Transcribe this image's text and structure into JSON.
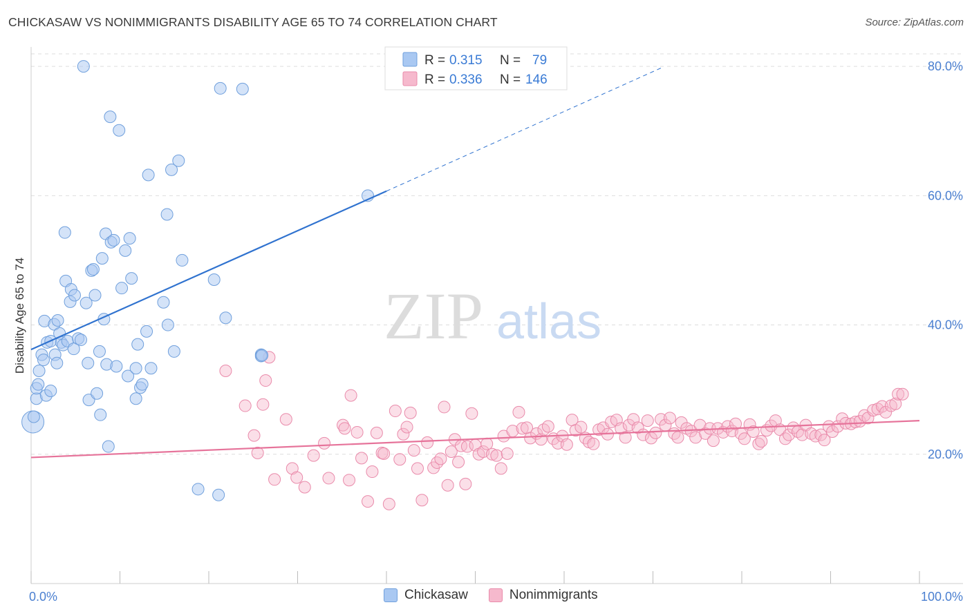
{
  "title": "CHICKASAW VS NONIMMIGRANTS DISABILITY AGE 65 TO 74 CORRELATION CHART",
  "source": "Source: ZipAtlas.com",
  "watermark": {
    "zip": "ZIP",
    "atlas": "atlas"
  },
  "legend_top": [
    {
      "r_label": "R =",
      "r_value": "0.315",
      "n_label": "N =",
      "n_value": "79"
    },
    {
      "r_label": "R =",
      "r_value": "0.336",
      "n_label": "N =",
      "n_value": "146"
    }
  ],
  "legend_bottom": [
    {
      "label": "Chickasaw"
    },
    {
      "label": "Nonimmigrants"
    }
  ],
  "colors": {
    "blue_fill": "#a9c8f2",
    "blue_stroke": "#6f9fdc",
    "blue_line": "#2f72cf",
    "pink_fill": "#f6b9cd",
    "pink_stroke": "#e98aaa",
    "pink_line": "#e6739a",
    "tick_text": "#4a7fd0",
    "grid": "#dddddd"
  },
  "chart_data": {
    "type": "scatter",
    "title": "CHICKASAW VS NONIMMIGRANTS DISABILITY AGE 65 TO 74 CORRELATION CHART",
    "xlabel": "",
    "ylabel": "Disability Age 65 to 74",
    "xlim": [
      0,
      100
    ],
    "ylim": [
      0,
      83
    ],
    "x_tick_labels": [
      "0.0%",
      "100.0%"
    ],
    "y_ticks": [
      20,
      40,
      60,
      80
    ],
    "y_tick_labels": [
      "20.0%",
      "40.0%",
      "60.0%",
      "80.0%"
    ],
    "grid": true,
    "series": [
      {
        "name": "Chickasaw",
        "r": 0.315,
        "n": 79,
        "trend": {
          "x0": 0,
          "y0": 36.2,
          "x1": 40,
          "y1": 60.7,
          "dash_to_x": 71,
          "dash_to_y": 79.8
        },
        "points": [
          [
            0.2,
            25.0
          ],
          [
            0.3,
            25.8
          ],
          [
            0.6,
            28.6
          ],
          [
            0.6,
            30.2
          ],
          [
            0.8,
            30.8
          ],
          [
            0.9,
            32.9
          ],
          [
            1.2,
            35.4
          ],
          [
            1.4,
            34.6
          ],
          [
            1.5,
            40.6
          ],
          [
            1.7,
            29.1
          ],
          [
            1.8,
            37.3
          ],
          [
            2.2,
            37.5
          ],
          [
            2.2,
            29.8
          ],
          [
            2.6,
            40.1
          ],
          [
            2.7,
            35.4
          ],
          [
            2.9,
            34.1
          ],
          [
            3.0,
            40.7
          ],
          [
            3.2,
            38.7
          ],
          [
            3.4,
            37.3
          ],
          [
            3.6,
            36.9
          ],
          [
            3.8,
            54.3
          ],
          [
            3.9,
            46.8
          ],
          [
            4.1,
            37.5
          ],
          [
            4.4,
            43.6
          ],
          [
            4.5,
            45.5
          ],
          [
            4.8,
            36.3
          ],
          [
            4.9,
            44.6
          ],
          [
            5.3,
            37.9
          ],
          [
            5.6,
            37.7
          ],
          [
            5.9,
            80.0
          ],
          [
            6.2,
            43.4
          ],
          [
            6.4,
            34.1
          ],
          [
            6.5,
            28.4
          ],
          [
            6.8,
            48.4
          ],
          [
            7.0,
            48.6
          ],
          [
            7.2,
            44.6
          ],
          [
            7.4,
            29.4
          ],
          [
            7.7,
            35.9
          ],
          [
            7.8,
            26.1
          ],
          [
            8.0,
            50.3
          ],
          [
            8.2,
            40.9
          ],
          [
            8.4,
            54.1
          ],
          [
            8.5,
            33.9
          ],
          [
            8.7,
            21.2
          ],
          [
            8.9,
            72.2
          ],
          [
            9.0,
            52.8
          ],
          [
            9.3,
            53.1
          ],
          [
            9.6,
            33.6
          ],
          [
            9.9,
            70.1
          ],
          [
            10.2,
            45.7
          ],
          [
            10.6,
            51.5
          ],
          [
            10.9,
            32.1
          ],
          [
            11.1,
            53.4
          ],
          [
            11.3,
            47.2
          ],
          [
            11.8,
            28.6
          ],
          [
            11.8,
            33.3
          ],
          [
            12.0,
            37.0
          ],
          [
            12.3,
            30.3
          ],
          [
            12.5,
            30.8
          ],
          [
            13.0,
            39.0
          ],
          [
            13.2,
            63.2
          ],
          [
            13.5,
            33.3
          ],
          [
            14.9,
            43.5
          ],
          [
            15.3,
            57.1
          ],
          [
            15.4,
            40.0
          ],
          [
            15.8,
            64.0
          ],
          [
            16.1,
            35.9
          ],
          [
            16.6,
            65.4
          ],
          [
            17.0,
            50.0
          ],
          [
            18.8,
            14.6
          ],
          [
            20.6,
            47.0
          ],
          [
            21.1,
            13.7
          ],
          [
            21.3,
            76.6
          ],
          [
            21.9,
            41.1
          ],
          [
            23.8,
            76.5
          ],
          [
            25.9,
            35.4
          ],
          [
            25.9,
            35.2
          ],
          [
            37.9,
            60.0
          ],
          [
            26.0,
            35.3
          ]
        ]
      },
      {
        "name": "Nonimmigrants",
        "r": 0.336,
        "n": 146,
        "trend": {
          "x0": 0,
          "y0": 19.5,
          "x1": 100,
          "y1": 25.2
        },
        "points": [
          [
            21.9,
            32.9
          ],
          [
            24.1,
            27.5
          ],
          [
            25.1,
            22.9
          ],
          [
            25.5,
            20.2
          ],
          [
            26.1,
            27.7
          ],
          [
            26.4,
            31.4
          ],
          [
            26.8,
            35.0
          ],
          [
            27.4,
            16.1
          ],
          [
            28.7,
            25.4
          ],
          [
            29.4,
            17.8
          ],
          [
            29.9,
            16.4
          ],
          [
            30.8,
            14.9
          ],
          [
            31.8,
            19.8
          ],
          [
            33.0,
            21.7
          ],
          [
            33.5,
            16.3
          ],
          [
            35.1,
            24.5
          ],
          [
            35.3,
            24.0
          ],
          [
            35.8,
            16.0
          ],
          [
            36.0,
            29.1
          ],
          [
            36.7,
            23.4
          ],
          [
            37.2,
            19.4
          ],
          [
            37.9,
            12.7
          ],
          [
            38.4,
            17.3
          ],
          [
            38.9,
            23.3
          ],
          [
            39.5,
            20.2
          ],
          [
            39.7,
            20.1
          ],
          [
            40.3,
            12.3
          ],
          [
            41.0,
            26.7
          ],
          [
            41.5,
            19.2
          ],
          [
            41.9,
            23.1
          ],
          [
            42.3,
            24.2
          ],
          [
            42.7,
            26.4
          ],
          [
            43.1,
            20.6
          ],
          [
            43.5,
            17.8
          ],
          [
            44.0,
            12.9
          ],
          [
            44.6,
            21.8
          ],
          [
            45.3,
            17.9
          ],
          [
            45.7,
            18.7
          ],
          [
            46.1,
            19.3
          ],
          [
            46.5,
            27.3
          ],
          [
            46.9,
            15.2
          ],
          [
            47.3,
            20.4
          ],
          [
            47.7,
            22.3
          ],
          [
            48.1,
            18.8
          ],
          [
            48.4,
            21.3
          ],
          [
            48.9,
            15.4
          ],
          [
            49.1,
            21.2
          ],
          [
            49.6,
            26.3
          ],
          [
            50.0,
            21.4
          ],
          [
            50.4,
            20.0
          ],
          [
            50.9,
            20.4
          ],
          [
            51.3,
            21.6
          ],
          [
            51.9,
            20.0
          ],
          [
            52.4,
            19.8
          ],
          [
            52.9,
            17.8
          ],
          [
            53.2,
            22.8
          ],
          [
            53.6,
            20.1
          ],
          [
            54.2,
            23.6
          ],
          [
            54.9,
            26.5
          ],
          [
            55.3,
            24.0
          ],
          [
            55.8,
            24.1
          ],
          [
            56.2,
            22.5
          ],
          [
            56.9,
            23.2
          ],
          [
            57.4,
            22.3
          ],
          [
            57.7,
            23.8
          ],
          [
            58.2,
            24.3
          ],
          [
            58.8,
            22.4
          ],
          [
            59.3,
            21.7
          ],
          [
            59.8,
            22.8
          ],
          [
            60.3,
            21.5
          ],
          [
            60.9,
            25.3
          ],
          [
            61.3,
            23.7
          ],
          [
            61.9,
            24.2
          ],
          [
            62.4,
            22.5
          ],
          [
            62.8,
            21.9
          ],
          [
            63.3,
            21.6
          ],
          [
            63.9,
            23.8
          ],
          [
            64.4,
            24.1
          ],
          [
            64.9,
            23.1
          ],
          [
            65.3,
            25.0
          ],
          [
            65.9,
            25.3
          ],
          [
            66.4,
            24.0
          ],
          [
            66.9,
            22.6
          ],
          [
            67.3,
            24.5
          ],
          [
            67.8,
            25.4
          ],
          [
            68.3,
            24.1
          ],
          [
            68.9,
            23.0
          ],
          [
            69.4,
            25.2
          ],
          [
            69.8,
            22.5
          ],
          [
            70.3,
            23.3
          ],
          [
            70.9,
            25.4
          ],
          [
            71.4,
            24.5
          ],
          [
            71.9,
            25.6
          ],
          [
            72.4,
            23.2
          ],
          [
            72.8,
            22.6
          ],
          [
            73.2,
            24.9
          ],
          [
            73.8,
            24.0
          ],
          [
            74.3,
            23.6
          ],
          [
            74.8,
            22.6
          ],
          [
            75.3,
            24.5
          ],
          [
            75.9,
            23.2
          ],
          [
            76.4,
            24.0
          ],
          [
            76.8,
            22.1
          ],
          [
            77.3,
            24.0
          ],
          [
            77.9,
            23.4
          ],
          [
            78.4,
            24.3
          ],
          [
            78.9,
            23.6
          ],
          [
            79.3,
            24.7
          ],
          [
            79.9,
            23.2
          ],
          [
            80.3,
            22.4
          ],
          [
            80.9,
            24.6
          ],
          [
            81.3,
            23.5
          ],
          [
            81.9,
            21.6
          ],
          [
            82.2,
            22.0
          ],
          [
            82.8,
            23.7
          ],
          [
            83.3,
            24.4
          ],
          [
            83.8,
            25.2
          ],
          [
            84.3,
            23.8
          ],
          [
            84.9,
            22.4
          ],
          [
            85.3,
            23.0
          ],
          [
            85.8,
            24.1
          ],
          [
            86.3,
            23.5
          ],
          [
            86.8,
            23.0
          ],
          [
            87.2,
            24.5
          ],
          [
            87.8,
            23.2
          ],
          [
            88.3,
            22.8
          ],
          [
            88.9,
            23.0
          ],
          [
            89.3,
            22.2
          ],
          [
            89.8,
            24.3
          ],
          [
            90.2,
            23.5
          ],
          [
            90.8,
            24.3
          ],
          [
            91.3,
            25.5
          ],
          [
            91.7,
            24.8
          ],
          [
            92.3,
            24.7
          ],
          [
            92.8,
            25.0
          ],
          [
            93.3,
            25.1
          ],
          [
            93.8,
            26.0
          ],
          [
            94.2,
            25.6
          ],
          [
            94.8,
            26.8
          ],
          [
            95.3,
            27.0
          ],
          [
            95.8,
            27.4
          ],
          [
            96.2,
            26.5
          ],
          [
            96.8,
            27.5
          ],
          [
            97.3,
            27.8
          ],
          [
            97.6,
            29.3
          ],
          [
            98.1,
            29.3
          ]
        ]
      }
    ]
  }
}
